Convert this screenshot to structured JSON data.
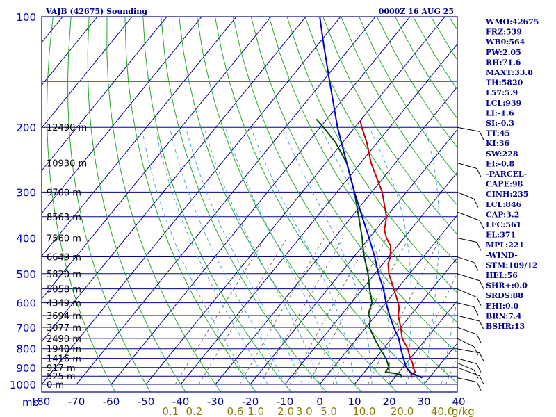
{
  "header": {
    "station": "VAJB (42675) Sounding",
    "time": "0000Z 16 AUG 25"
  },
  "chart_data": {
    "type": "line",
    "subtype": "skew-t log-p",
    "pressure_levels": [
      100,
      200,
      300,
      400,
      500,
      600,
      700,
      800,
      900,
      1000
    ],
    "y_axis_unit": "mb",
    "temperature_ticks": [
      -80,
      -70,
      -60,
      -50,
      -40,
      -30,
      -20,
      -10,
      0,
      10,
      20,
      30,
      40
    ],
    "ylim": [
      1000,
      100
    ],
    "xlim": [
      -80,
      40
    ],
    "height_labels": [
      {
        "p": 200,
        "label": "12490 m"
      },
      {
        "p": 250,
        "label": "10930 m"
      },
      {
        "p": 300,
        "label": "9700 m"
      },
      {
        "p": 350,
        "label": "8563 m"
      },
      {
        "p": 400,
        "label": "7560 m"
      },
      {
        "p": 450,
        "label": "6649 m"
      },
      {
        "p": 500,
        "label": "5820 m"
      },
      {
        "p": 550,
        "label": "5058 m"
      },
      {
        "p": 600,
        "label": "4349 m"
      },
      {
        "p": 650,
        "label": "3694 m"
      },
      {
        "p": 700,
        "label": "3077 m"
      },
      {
        "p": 750,
        "label": "2490 m"
      },
      {
        "p": 800,
        "label": "1940 m"
      },
      {
        "p": 850,
        "label": "1416 m"
      },
      {
        "p": 900,
        "label": "917 m"
      },
      {
        "p": 950,
        "label": "525 m"
      },
      {
        "p": 1000,
        "label": "0 m"
      }
    ],
    "mixing_ratio_labels": [
      {
        "w": 0.1,
        "label": "0.1"
      },
      {
        "w": 0.2,
        "label": "0.2"
      },
      {
        "w": 0.6,
        "label": "0.6"
      },
      {
        "w": 1.0,
        "label": "1.0"
      },
      {
        "w": 2.0,
        "label": "2.0"
      },
      {
        "w": 3.0,
        "label": "3.0"
      },
      {
        "w": 5.0,
        "label": "5.0"
      },
      {
        "w": 10.0,
        "label": "10.0"
      },
      {
        "w": 20.0,
        "label": "20.0"
      },
      {
        "w": 40.0,
        "label": "40.0"
      }
    ],
    "mixing_ratio_unit": "g/kg",
    "series": [
      {
        "name": "Temperature",
        "color": "#cc0000",
        "points": [
          {
            "p": 960,
            "t": 25
          },
          {
            "p": 940,
            "t": 24
          },
          {
            "p": 925,
            "t": 24.5
          },
          {
            "p": 900,
            "t": 23
          },
          {
            "p": 880,
            "t": 22
          },
          {
            "p": 850,
            "t": 20
          },
          {
            "p": 800,
            "t": 17
          },
          {
            "p": 750,
            "t": 13
          },
          {
            "p": 700,
            "t": 10
          },
          {
            "p": 650,
            "t": 6.5
          },
          {
            "p": 620,
            "t": 5
          },
          {
            "p": 600,
            "t": 3.5
          },
          {
            "p": 550,
            "t": -1
          },
          {
            "p": 500,
            "t": -6
          },
          {
            "p": 470,
            "t": -8.5
          },
          {
            "p": 450,
            "t": -9.5
          },
          {
            "p": 420,
            "t": -12
          },
          {
            "p": 400,
            "t": -15
          },
          {
            "p": 380,
            "t": -17.5
          },
          {
            "p": 350,
            "t": -20
          },
          {
            "p": 300,
            "t": -27
          },
          {
            "p": 250,
            "t": -37
          },
          {
            "p": 220,
            "t": -43
          },
          {
            "p": 200,
            "t": -48
          },
          {
            "p": 192,
            "t": -50
          }
        ]
      },
      {
        "name": "Dew point",
        "color": "#004d00",
        "points": [
          {
            "p": 960,
            "t": 22
          },
          {
            "p": 940,
            "t": 21
          },
          {
            "p": 925,
            "t": 16
          },
          {
            "p": 900,
            "t": 16
          },
          {
            "p": 850,
            "t": 13
          },
          {
            "p": 800,
            "t": 9
          },
          {
            "p": 750,
            "t": 5
          },
          {
            "p": 700,
            "t": 1
          },
          {
            "p": 660,
            "t": -1
          },
          {
            "p": 650,
            "t": -2
          },
          {
            "p": 630,
            "t": -3
          },
          {
            "p": 600,
            "t": -4
          },
          {
            "p": 550,
            "t": -8
          },
          {
            "p": 500,
            "t": -12
          },
          {
            "p": 450,
            "t": -17
          },
          {
            "p": 420,
            "t": -20
          },
          {
            "p": 400,
            "t": -22
          },
          {
            "p": 350,
            "t": -28
          },
          {
            "p": 300,
            "t": -35
          },
          {
            "p": 250,
            "t": -44
          },
          {
            "p": 220,
            "t": -52
          },
          {
            "p": 200,
            "t": -59
          },
          {
            "p": 190,
            "t": -63
          }
        ]
      },
      {
        "name": "Parcel",
        "color": "#0000cc",
        "points": [
          {
            "p": 960,
            "t": 28
          },
          {
            "p": 940,
            "t": 25
          },
          {
            "p": 925,
            "t": 23
          },
          {
            "p": 900,
            "t": 21
          },
          {
            "p": 850,
            "t": 18
          },
          {
            "p": 800,
            "t": 15
          },
          {
            "p": 750,
            "t": 12
          },
          {
            "p": 700,
            "t": 8
          },
          {
            "p": 650,
            "t": 4
          },
          {
            "p": 600,
            "t": 0
          },
          {
            "p": 550,
            "t": -4
          },
          {
            "p": 500,
            "t": -9
          },
          {
            "p": 450,
            "t": -14
          },
          {
            "p": 400,
            "t": -20
          },
          {
            "p": 350,
            "t": -27
          },
          {
            "p": 300,
            "t": -35
          },
          {
            "p": 250,
            "t": -44
          },
          {
            "p": 200,
            "t": -55
          },
          {
            "p": 150,
            "t": -68
          },
          {
            "p": 120,
            "t": -78
          },
          {
            "p": 100,
            "t": -86
          }
        ]
      }
    ],
    "wind_barbs_pressure": [
      200,
      250,
      300,
      340,
      400,
      450,
      500,
      550,
      600,
      650,
      700,
      750,
      800,
      850,
      875,
      900,
      960
    ]
  },
  "indices": [
    "WMO:42675",
    "FRZ:539",
    "WB0:564",
    "PW:2.05",
    "RH:71.6",
    "MAXT:33.8",
    "TH:5820",
    "L57:5.9",
    "LCL:939",
    "LI:-1.6",
    "SI:-0.3",
    "TT:45",
    "KI:36",
    "SW:228",
    "EI:-0.8",
    "-PARCEL-",
    "CAPE:98",
    "CINH:235",
    "LCL:846",
    "CAP:3.2",
    "LFC:561",
    "EL:371",
    "MPL:221",
    "-WIND-",
    "STM:109/12",
    "HEL:56",
    "SHR+:0.0",
    "SRDS:88",
    "EHI:0.0",
    "BRN:7.4",
    "BSHR:13"
  ]
}
